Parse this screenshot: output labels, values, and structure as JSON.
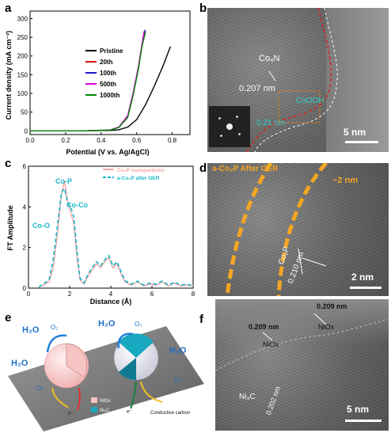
{
  "panels": {
    "a": "a",
    "b": "b",
    "c": "c",
    "d": "d",
    "e": "e",
    "f": "f"
  },
  "chart_data": [
    {
      "type": "line",
      "panel": "a",
      "xlabel": "Potential (V vs. Ag/AgCl)",
      "ylabel": "Current density (mA cm⁻²)",
      "xlim": [
        0.0,
        0.9
      ],
      "ylim": [
        -10,
        320
      ],
      "x_ticks": [
        "0.0",
        "0.2",
        "0.4",
        "0.6",
        "0.8"
      ],
      "y_ticks": [
        "0",
        "50",
        "100",
        "150",
        "200",
        "250",
        "300"
      ],
      "legend_position": "center",
      "series": [
        {
          "name": "Pristine",
          "color": "#000000",
          "x": [
            0.0,
            0.3,
            0.45,
            0.5,
            0.55,
            0.6,
            0.65,
            0.7,
            0.75,
            0.79
          ],
          "y": [
            0,
            0,
            1,
            3,
            10,
            30,
            70,
            120,
            175,
            225
          ]
        },
        {
          "name": "20th",
          "color": "#e00000",
          "x": [
            0.0,
            0.3,
            0.45,
            0.5,
            0.55,
            0.58,
            0.61,
            0.63,
            0.645
          ],
          "y": [
            0,
            0,
            2,
            10,
            40,
            100,
            170,
            230,
            268
          ]
        },
        {
          "name": "100th",
          "color": "#1a1acc",
          "x": [
            0.0,
            0.3,
            0.45,
            0.5,
            0.55,
            0.58,
            0.61,
            0.63,
            0.648
          ],
          "y": [
            0,
            0,
            2,
            9,
            38,
            98,
            168,
            228,
            270
          ]
        },
        {
          "name": "500th",
          "color": "#e000e0",
          "x": [
            0.0,
            0.3,
            0.45,
            0.5,
            0.55,
            0.58,
            0.61,
            0.63,
            0.642
          ],
          "y": [
            0,
            0,
            2,
            10,
            41,
            102,
            172,
            232,
            266
          ]
        },
        {
          "name": "1000th",
          "color": "#008a00",
          "x": [
            0.0,
            0.3,
            0.45,
            0.5,
            0.55,
            0.58,
            0.61,
            0.63,
            0.65
          ],
          "y": [
            0,
            0,
            2,
            9,
            36,
            95,
            165,
            225,
            265
          ]
        }
      ]
    },
    {
      "type": "line",
      "panel": "c",
      "xlabel": "Distance (Å)",
      "ylabel": "FT Amplitude",
      "xlim": [
        0,
        8
      ],
      "ylim": [
        0,
        6
      ],
      "x_ticks": [
        "0",
        "2",
        "4",
        "6",
        "8"
      ],
      "y_ticks": [
        "0",
        "2",
        "4",
        "6"
      ],
      "legend_position": "top-right",
      "series": [
        {
          "name": "Co₂P nanoparticles",
          "color": "#f4a6a6",
          "style": "solid",
          "x": [
            0.5,
            1.0,
            1.2,
            1.4,
            1.6,
            1.75,
            1.9,
            2.05,
            2.2,
            2.35,
            2.5,
            2.7,
            2.9,
            3.1,
            3.3,
            3.5,
            3.7,
            3.9,
            4.1,
            4.3,
            4.5,
            4.7,
            5.0,
            5.3,
            5.6,
            5.9,
            6.2,
            6.5,
            6.8,
            7.1,
            7.4,
            7.7,
            8.0
          ],
          "y": [
            0.05,
            0.3,
            1.0,
            2.6,
            4.6,
            5.3,
            4.3,
            3.7,
            3.2,
            1.6,
            0.4,
            0.2,
            0.6,
            0.9,
            1.2,
            1.0,
            1.3,
            1.5,
            1.0,
            1.2,
            0.7,
            0.3,
            0.15,
            0.3,
            0.1,
            0.2,
            0.15,
            0.3,
            0.1,
            0.25,
            0.1,
            0.15,
            0.1
          ]
        },
        {
          "name": "a-Co₂P after OER",
          "color": "#17b8c8",
          "style": "dashed",
          "x": [
            0.5,
            1.0,
            1.2,
            1.4,
            1.6,
            1.75,
            1.9,
            2.05,
            2.2,
            2.35,
            2.5,
            2.7,
            2.9,
            3.1,
            3.3,
            3.5,
            3.7,
            3.9,
            4.1,
            4.3,
            4.5,
            4.7,
            5.0,
            5.3,
            5.6,
            5.9,
            6.2,
            6.5,
            6.8,
            7.1,
            7.4,
            7.7,
            8.0
          ],
          "y": [
            0.05,
            0.4,
            1.4,
            3.0,
            4.7,
            4.9,
            4.2,
            4.0,
            3.5,
            1.9,
            0.5,
            0.25,
            0.7,
            1.0,
            1.3,
            1.1,
            1.4,
            1.6,
            1.1,
            1.3,
            0.8,
            0.35,
            0.2,
            0.35,
            0.15,
            0.25,
            0.2,
            0.35,
            0.15,
            0.3,
            0.15,
            0.2,
            0.1
          ]
        }
      ],
      "annotations": [
        "Co-P",
        "Co-Co",
        "Co-O"
      ]
    }
  ],
  "panel_b": {
    "label_co4n": "Co₄N",
    "label_d1": "0.207 nm",
    "label_cooh": "CoOOH",
    "label_d2": "0.21 nm",
    "scale": "5 nm"
  },
  "panel_d": {
    "label_top": "a-Co₂P After OER",
    "label_thick": "~2 nm",
    "label_co2p": "Co₂P",
    "label_d": "0.210 nm",
    "scale": "2 nm"
  },
  "panel_e": {
    "h2o": "H₂O",
    "o2": "O₂",
    "e": "e⁻",
    "legend_nio": "NiOx",
    "legend_nic": "Ni₃C",
    "substrate": "Conductive carbon"
  },
  "panel_f": {
    "label_d_top": "0.209 nm",
    "label_niox_top": "NiOx",
    "label_d_left": "0.209 nm",
    "label_niox_left": "NiOx",
    "label_ni3c": "Ni₃C",
    "label_d_ni3c": "0.202 nm",
    "scale": "5 nm"
  }
}
